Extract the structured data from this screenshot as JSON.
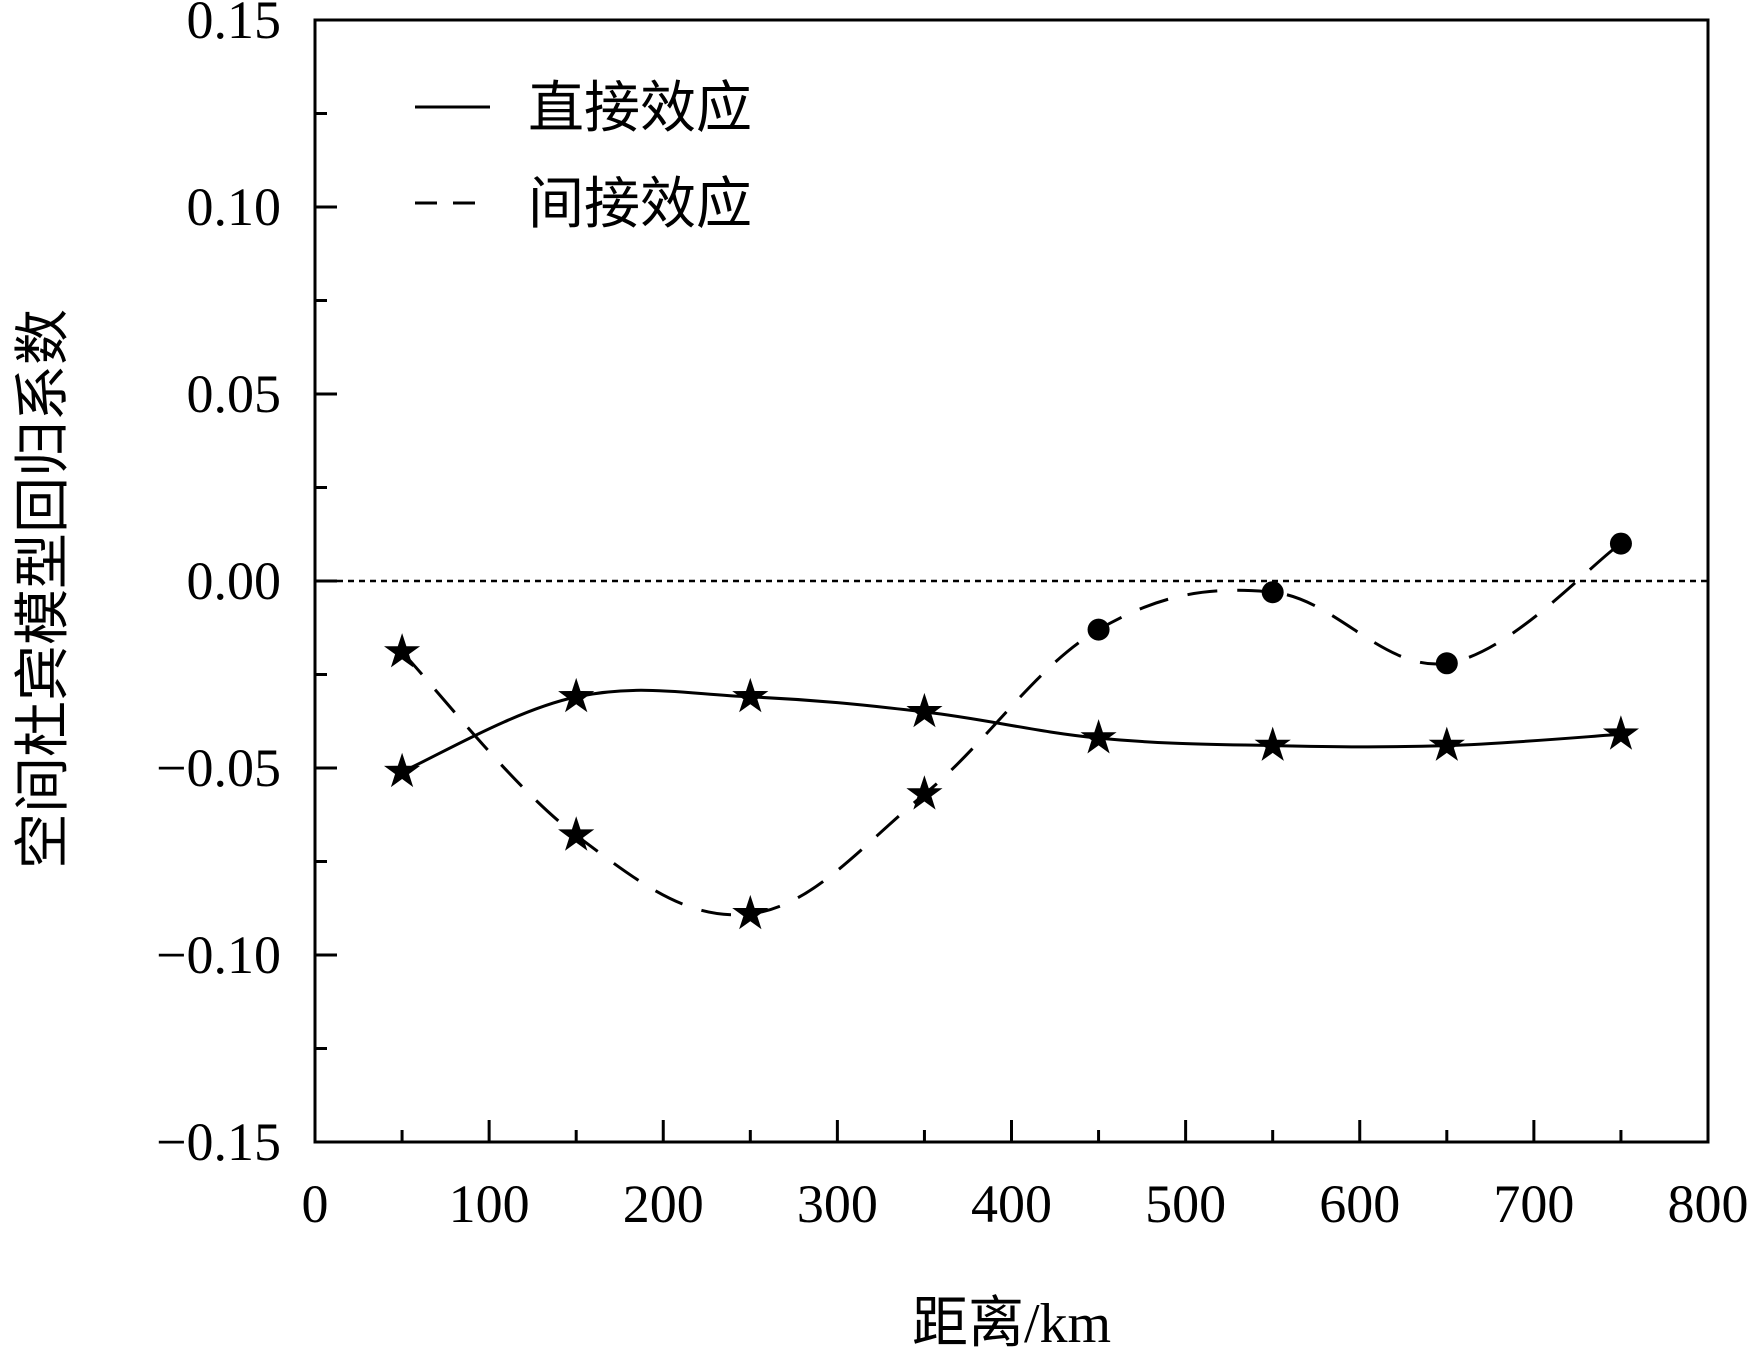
{
  "chart_data": {
    "type": "line",
    "title": "",
    "xlabel": "距离/km",
    "ylabel": "空间杜宾模型回归系数",
    "xlim": [
      0,
      800
    ],
    "ylim": [
      -0.15,
      0.15
    ],
    "xticks": [
      0,
      100,
      200,
      300,
      400,
      500,
      600,
      700,
      800
    ],
    "xtick_labels": [
      "0",
      "100",
      "200",
      "300",
      "400",
      "500",
      "600",
      "700",
      "800"
    ],
    "yticks": [
      -0.15,
      -0.1,
      -0.05,
      0.0,
      0.05,
      0.1,
      0.15
    ],
    "ytick_labels": [
      "−0.15",
      "−0.10",
      "−0.05",
      "0.00",
      "0.05",
      "0.10",
      "0.15"
    ],
    "grid": false,
    "legend": "top-left",
    "reference_line": {
      "y": 0,
      "style": "dotted"
    },
    "series": [
      {
        "name": "直接效应",
        "style": "solid",
        "color": "#000000",
        "x": [
          50,
          150,
          250,
          350,
          450,
          550,
          650,
          750
        ],
        "values": [
          -0.051,
          -0.031,
          -0.031,
          -0.035,
          -0.042,
          -0.044,
          -0.044,
          -0.041
        ],
        "markers": [
          "star",
          "star",
          "star",
          "star",
          "star",
          "star",
          "star",
          "star"
        ]
      },
      {
        "name": "间接效应",
        "style": "dashed",
        "color": "#000000",
        "x": [
          50,
          150,
          250,
          350,
          450,
          550,
          650,
          750
        ],
        "values": [
          -0.019,
          -0.068,
          -0.089,
          -0.057,
          -0.013,
          -0.003,
          -0.022,
          0.01
        ],
        "markers": [
          "star",
          "star",
          "star",
          "star",
          "circle",
          "circle",
          "circle",
          "circle"
        ]
      }
    ]
  }
}
